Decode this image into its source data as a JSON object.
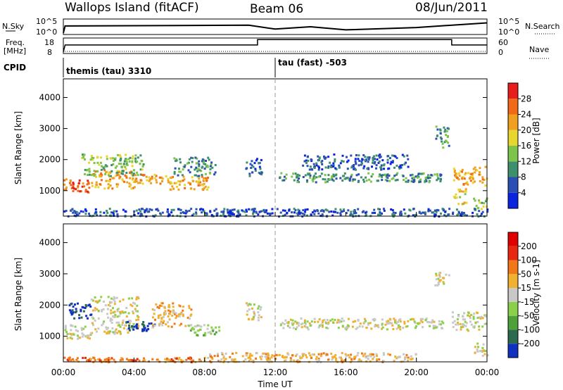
{
  "header": {
    "site": "Wallops Island (fitACF)",
    "beam": "Beam 06",
    "date": "08/Jun/2011"
  },
  "summary_labels": {
    "nsky": "N.Sky",
    "nsearch": "N.Search",
    "freq": "Freq.",
    "freq_unit": "[MHz]",
    "nave": "Nave",
    "cpid": "CPID",
    "noise_top": "10^5",
    "noise_bottom": "10^0",
    "freq_top": "18",
    "freq_bottom": "8",
    "nave_top": "60",
    "nave_bottom": "0"
  },
  "cpid_segments": [
    {
      "name": "themis (tau) 3310",
      "start": 0,
      "end": 12
    },
    {
      "name": "tau (fast) -503",
      "start": 12,
      "end": 24
    }
  ],
  "chart_data": [
    {
      "type": "heatmap",
      "name": "power",
      "ylabel": "Slant Range [km]",
      "ylim": [
        180,
        4600
      ],
      "yticks": [
        1000,
        2000,
        3000,
        4000
      ],
      "colorbar": {
        "label": "Power [dB]",
        "ticks": [
          "4",
          "8",
          "12",
          "16",
          "20",
          "24",
          "28"
        ],
        "colors": [
          "#0a24e0",
          "#2b4fb5",
          "#3e8f6c",
          "#7cc44a",
          "#e8d630",
          "#f0a020",
          "#f06a18",
          "#e81e1e"
        ]
      },
      "bands": [
        {
          "t0": 0.0,
          "t1": 1.5,
          "r0": 950,
          "r1": 1400,
          "level": 6
        },
        {
          "t0": 1.5,
          "t1": 4.0,
          "r0": 1100,
          "r1": 1700,
          "level": 5
        },
        {
          "t0": 1.0,
          "t1": 4.5,
          "r0": 1500,
          "r1": 2200,
          "level": 3
        },
        {
          "t0": 4.0,
          "t1": 6.2,
          "r0": 1250,
          "r1": 1550,
          "level": 5
        },
        {
          "t0": 6.0,
          "t1": 8.2,
          "r0": 1050,
          "r1": 1500,
          "level": 5
        },
        {
          "t0": 6.2,
          "t1": 8.6,
          "r0": 1500,
          "r1": 2100,
          "level": 2
        },
        {
          "t0": 10.3,
          "t1": 11.2,
          "r0": 1500,
          "r1": 2100,
          "level": 1
        },
        {
          "t0": 12.2,
          "t1": 21.5,
          "r0": 1300,
          "r1": 1600,
          "level": 2
        },
        {
          "t0": 13.5,
          "t1": 19.5,
          "r0": 1700,
          "r1": 2200,
          "level": 1
        },
        {
          "t0": 21.0,
          "t1": 21.8,
          "r0": 2400,
          "r1": 3100,
          "level": 2
        },
        {
          "t0": 22.0,
          "t1": 24.0,
          "r0": 1200,
          "r1": 1800,
          "level": 5
        },
        {
          "t0": 22.0,
          "t1": 22.8,
          "r0": 600,
          "r1": 1100,
          "level": 4
        },
        {
          "t0": 23.2,
          "t1": 24.0,
          "r0": 400,
          "r1": 800,
          "level": 3
        },
        {
          "t0": 0.0,
          "t1": 24.0,
          "r0": 200,
          "r1": 450,
          "level": 1
        }
      ]
    },
    {
      "type": "heatmap",
      "name": "velocity",
      "ylabel": "Slant Range [km]",
      "xlabel": "Time UT",
      "ylim": [
        180,
        4600
      ],
      "yticks": [
        1000,
        2000,
        3000,
        4000
      ],
      "xticks": [
        "00:00",
        "04:00",
        "08:00",
        "12:00",
        "16:00",
        "20:00",
        "00:00"
      ],
      "colorbar": {
        "label": "Velocity [m s-1]",
        "ticks": [
          "200",
          "100",
          "50",
          "15",
          "-15",
          "-50",
          "-100",
          "-200"
        ],
        "colors": [
          "#1030c0",
          "#2c6a50",
          "#4ea03a",
          "#8ad04a",
          "#c8c8c8",
          "#f0b030",
          "#f07818",
          "#e82810",
          "#e00000"
        ]
      },
      "bands": [
        {
          "t0": 0.0,
          "t1": 1.5,
          "r0": 950,
          "r1": 1400,
          "level": 4
        },
        {
          "t0": 0.3,
          "t1": 1.6,
          "r0": 1600,
          "r1": 2100,
          "level": 0
        },
        {
          "t0": 1.5,
          "t1": 4.2,
          "r0": 1100,
          "r1": 2300,
          "level": 4
        },
        {
          "t0": 3.5,
          "t1": 5.2,
          "r0": 1200,
          "r1": 1500,
          "level": 0
        },
        {
          "t0": 5.0,
          "t1": 7.2,
          "r0": 1300,
          "r1": 2100,
          "level": 5
        },
        {
          "t0": 7.0,
          "t1": 8.8,
          "r0": 1050,
          "r1": 1400,
          "level": 3
        },
        {
          "t0": 10.3,
          "t1": 11.2,
          "r0": 1500,
          "r1": 2100,
          "level": 4
        },
        {
          "t0": 12.2,
          "t1": 21.5,
          "r0": 1250,
          "r1": 1600,
          "level": 4
        },
        {
          "t0": 21.0,
          "t1": 21.8,
          "r0": 2600,
          "r1": 3100,
          "level": 4
        },
        {
          "t0": 22.0,
          "t1": 24.0,
          "r0": 1200,
          "r1": 1800,
          "level": 4
        },
        {
          "t0": 23.2,
          "t1": 24.0,
          "r0": 400,
          "r1": 800,
          "level": 4
        },
        {
          "t0": 8.0,
          "t1": 20.0,
          "r0": 200,
          "r1": 500,
          "level": 5
        },
        {
          "t0": 0.0,
          "t1": 8.0,
          "r0": 200,
          "r1": 350,
          "level": 6
        }
      ]
    }
  ],
  "noise": {
    "steps": [
      {
        "t": 0.0,
        "v": 0.1
      },
      {
        "t": 0.1,
        "v": 0.55
      },
      {
        "t": 10.5,
        "v": 0.6
      },
      {
        "t": 12.0,
        "v": 0.35
      },
      {
        "t": 14.0,
        "v": 0.5
      },
      {
        "t": 16.0,
        "v": 0.3
      },
      {
        "t": 20.0,
        "v": 0.45
      },
      {
        "t": 24.0,
        "v": 0.75
      }
    ]
  },
  "freq_nave": {
    "freq": [
      {
        "t": 0.0,
        "v": 0.1
      },
      {
        "t": 0.1,
        "v": 0.55
      },
      {
        "t": 11.0,
        "v": 0.55
      },
      {
        "t": 11.0,
        "v": 0.9
      },
      {
        "t": 22.0,
        "v": 0.9
      },
      {
        "t": 22.0,
        "v": 0.55
      },
      {
        "t": 24.0,
        "v": 0.55
      }
    ]
  }
}
